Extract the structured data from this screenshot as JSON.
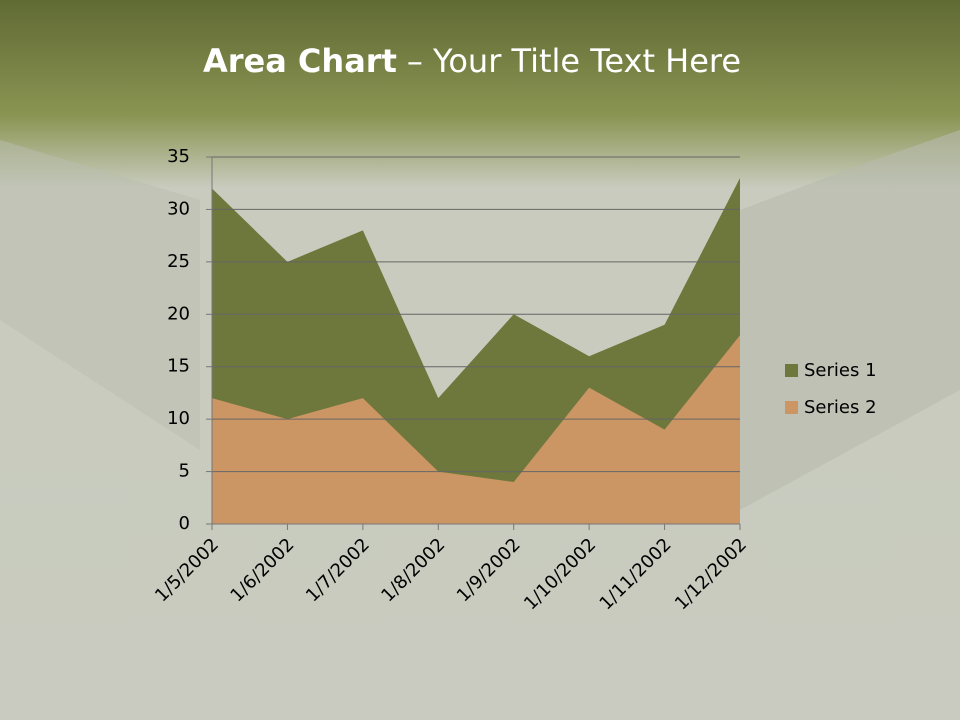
{
  "chart_data": {
    "type": "area",
    "title": [
      "Area Chart",
      "– Your Title Text Here"
    ],
    "categories": [
      "1/5/2002",
      "1/6/2002",
      "1/7/2002",
      "1/8/2002",
      "1/9/2002",
      "1/10/2002",
      "1/11/2002",
      "1/12/2002"
    ],
    "series": [
      {
        "name": "Series 1",
        "color": "#6e773c",
        "values": [
          32,
          25,
          28,
          12,
          20,
          16,
          19,
          33
        ]
      },
      {
        "name": "Series 2",
        "color": "#cb9663",
        "values": [
          12,
          10,
          12,
          5,
          4,
          13,
          9,
          18
        ]
      }
    ],
    "ylim": [
      0,
      35
    ],
    "yticks": [
      0,
      5,
      10,
      15,
      20,
      25,
      30,
      35
    ],
    "grid": true,
    "legend": "right"
  }
}
